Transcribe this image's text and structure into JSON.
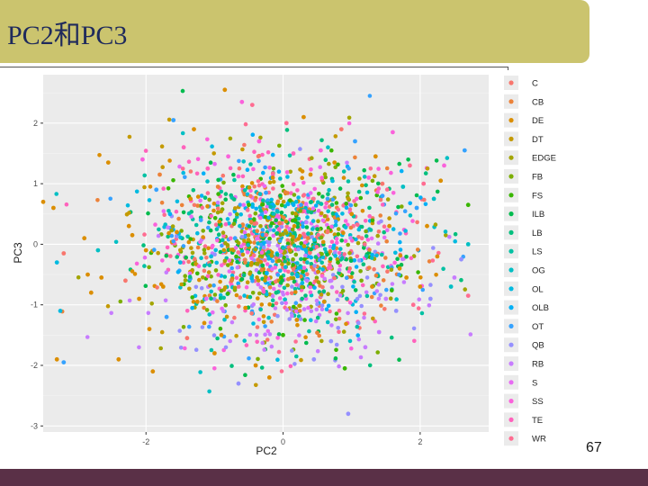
{
  "slide": {
    "title": "PC2和PC3",
    "page_number": "67"
  },
  "chart_data": {
    "type": "scatter",
    "title": "",
    "xlabel": "PC2",
    "ylabel": "PC3",
    "xlim": [
      -3.5,
      3.0
    ],
    "ylim": [
      -3.1,
      2.8
    ],
    "x_ticks": [
      -2,
      0,
      2
    ],
    "y_ticks": [
      -3,
      -2,
      -1,
      0,
      1,
      2
    ],
    "grid": true,
    "legend_position": "right",
    "series": [
      {
        "name": "C",
        "color": "#f8766d"
      },
      {
        "name": "CB",
        "color": "#ec8239"
      },
      {
        "name": "DE",
        "color": "#db8e00"
      },
      {
        "name": "DT",
        "color": "#c49a00"
      },
      {
        "name": "EDGE",
        "color": "#a3a500"
      },
      {
        "name": "FB",
        "color": "#7cae00"
      },
      {
        "name": "FS",
        "color": "#39b600"
      },
      {
        "name": "ILB",
        "color": "#00bb4e"
      },
      {
        "name": "LB",
        "color": "#00bf7d"
      },
      {
        "name": "LS",
        "color": "#00c1a3"
      },
      {
        "name": "OG",
        "color": "#00bfc4"
      },
      {
        "name": "OL",
        "color": "#00bae0"
      },
      {
        "name": "OLB",
        "color": "#00b0f6"
      },
      {
        "name": "OT",
        "color": "#35a2ff"
      },
      {
        "name": "QB",
        "color": "#9590ff"
      },
      {
        "name": "RB",
        "color": "#c77cff"
      },
      {
        "name": "S",
        "color": "#e76bf3"
      },
      {
        "name": "SS",
        "color": "#fa62db"
      },
      {
        "name": "TE",
        "color": "#ff62bc"
      },
      {
        "name": "WR",
        "color": "#ff6c91"
      }
    ],
    "points": [
      [
        -3.5,
        0.7,
        "DE"
      ],
      [
        -3.35,
        0.6,
        "DE"
      ],
      [
        -3.3,
        -0.3,
        "OL"
      ],
      [
        -3.2,
        -0.15,
        "C"
      ],
      [
        -3.25,
        -1.1,
        "OL"
      ],
      [
        -3.2,
        -1.95,
        "OT"
      ],
      [
        -3.3,
        -1.9,
        "DE"
      ],
      [
        -2.9,
        0.1,
        "DE"
      ],
      [
        -2.85,
        -0.5,
        "DE"
      ],
      [
        -2.8,
        -0.8,
        "DE"
      ],
      [
        -2.7,
        -0.1,
        "OG"
      ],
      [
        -2.65,
        -0.55,
        "DE"
      ],
      [
        -2.55,
        1.35,
        "DE"
      ],
      [
        -2.4,
        -1.9,
        "DE"
      ],
      [
        -2.3,
        -0.6,
        "C"
      ],
      [
        -2.25,
        0.3,
        "DE"
      ],
      [
        -2.2,
        0.15,
        "DE"
      ],
      [
        -2.1,
        -0.9,
        "DE"
      ],
      [
        -2.05,
        1.4,
        "SS"
      ],
      [
        -2.0,
        -0.1,
        "DE"
      ],
      [
        -1.95,
        -1.4,
        "DE"
      ],
      [
        -1.9,
        -2.1,
        "DE"
      ],
      [
        -1.85,
        0.9,
        "OT"
      ],
      [
        -1.8,
        1.15,
        "CB"
      ],
      [
        -1.75,
        -0.7,
        "DE"
      ],
      [
        -1.7,
        -1.2,
        "OT"
      ],
      [
        -1.65,
        0.5,
        "OLB"
      ],
      [
        -1.6,
        2.05,
        "OT"
      ],
      [
        -1.55,
        0.2,
        "DE"
      ],
      [
        -1.5,
        -0.3,
        "OL"
      ],
      [
        -1.45,
        1.6,
        "TE"
      ],
      [
        -1.4,
        -1.55,
        "C"
      ],
      [
        -1.35,
        0.75,
        "DE"
      ],
      [
        -1.3,
        1.9,
        "DE"
      ],
      [
        -1.25,
        -0.95,
        "DE"
      ],
      [
        -1.2,
        0.4,
        "OT"
      ],
      [
        -1.15,
        -1.3,
        "DE"
      ],
      [
        -1.1,
        1.25,
        "TE"
      ],
      [
        -1.05,
        -0.2,
        "OL"
      ],
      [
        -1.0,
        -1.8,
        "DE"
      ],
      [
        -0.95,
        0.95,
        "CB"
      ],
      [
        -0.9,
        -1.5,
        "DE"
      ],
      [
        -0.85,
        2.55,
        "DE"
      ],
      [
        -0.8,
        1.45,
        "SS"
      ],
      [
        -0.75,
        -0.6,
        "CB"
      ],
      [
        -0.7,
        0.1,
        "OT"
      ],
      [
        -0.65,
        -2.3,
        "QB"
      ],
      [
        -0.6,
        2.35,
        "SS"
      ],
      [
        -0.55,
        -1.05,
        "DE"
      ],
      [
        -0.5,
        0.65,
        "FS"
      ],
      [
        -0.45,
        2.3,
        "WR"
      ],
      [
        -0.4,
        -2.0,
        "DE"
      ],
      [
        -0.35,
        1.7,
        "SS"
      ],
      [
        -0.3,
        -0.35,
        "ILB"
      ],
      [
        -0.25,
        0.85,
        "OT"
      ],
      [
        -0.2,
        -2.2,
        "DE"
      ],
      [
        -0.15,
        1.1,
        "DE"
      ],
      [
        -0.1,
        -0.8,
        "LB"
      ],
      [
        -0.05,
        0.35,
        "CB"
      ],
      [
        0.0,
        -1.5,
        "FS"
      ],
      [
        0.05,
        2.0,
        "WR"
      ],
      [
        0.1,
        -0.1,
        "DE"
      ],
      [
        0.15,
        1.5,
        "TE"
      ],
      [
        0.2,
        -1.25,
        "DE"
      ],
      [
        0.25,
        0.55,
        "FB"
      ],
      [
        0.3,
        2.1,
        "DE"
      ],
      [
        0.35,
        -0.6,
        "RB"
      ],
      [
        0.4,
        1.15,
        "DE"
      ],
      [
        0.45,
        -1.9,
        "QB"
      ],
      [
        0.5,
        0.25,
        "ILB"
      ],
      [
        0.55,
        1.55,
        "SS"
      ],
      [
        0.6,
        -0.95,
        "DE"
      ],
      [
        0.65,
        0.75,
        "OT"
      ],
      [
        0.7,
        -1.6,
        "QB"
      ],
      [
        0.75,
        1.35,
        "DE"
      ],
      [
        0.8,
        -0.3,
        "FS"
      ],
      [
        0.85,
        1.9,
        "C"
      ],
      [
        0.9,
        -2.05,
        "FS"
      ],
      [
        0.95,
        -2.8,
        "QB"
      ],
      [
        1.0,
        0.5,
        "DE"
      ],
      [
        1.05,
        1.7,
        "OT"
      ],
      [
        1.1,
        -1.3,
        "QB"
      ],
      [
        1.15,
        0.1,
        "WR"
      ],
      [
        1.2,
        -1.7,
        "RB"
      ],
      [
        1.25,
        1.1,
        "SS"
      ],
      [
        1.3,
        -0.7,
        "DE"
      ],
      [
        1.35,
        1.45,
        "DE"
      ],
      [
        1.4,
        -1.45,
        "RB"
      ],
      [
        1.45,
        0.8,
        "OT"
      ],
      [
        1.5,
        -0.9,
        "RB"
      ],
      [
        1.55,
        0.3,
        "DE"
      ],
      [
        1.6,
        1.85,
        "SS"
      ],
      [
        1.65,
        -1.1,
        "QB"
      ],
      [
        1.7,
        -0.4,
        "DE"
      ],
      [
        1.75,
        0.95,
        "OG"
      ],
      [
        1.8,
        -0.55,
        "DE"
      ],
      [
        1.85,
        1.3,
        "WR"
      ],
      [
        1.9,
        -1.0,
        "WR"
      ],
      [
        1.95,
        0.6,
        "OT"
      ],
      [
        2.0,
        -0.7,
        "DE"
      ],
      [
        2.05,
        1.0,
        "WR"
      ],
      [
        2.1,
        0.3,
        "DE"
      ],
      [
        2.15,
        -0.9,
        "QB"
      ],
      [
        2.2,
        0.75,
        "OG"
      ],
      [
        2.25,
        -0.2,
        "DE"
      ],
      [
        2.3,
        1.05,
        "DE"
      ],
      [
        2.35,
        1.3,
        "SS"
      ],
      [
        2.45,
        -0.7,
        "OG"
      ],
      [
        2.5,
        -0.55,
        "RB"
      ],
      [
        2.6,
        -0.25,
        "QB"
      ],
      [
        2.65,
        1.55,
        "OT"
      ],
      [
        2.7,
        -0.85,
        "WR"
      ],
      [
        2.7,
        0.65,
        "FS"
      ],
      [
        2.7,
        0.0,
        "OG"
      ]
    ]
  }
}
